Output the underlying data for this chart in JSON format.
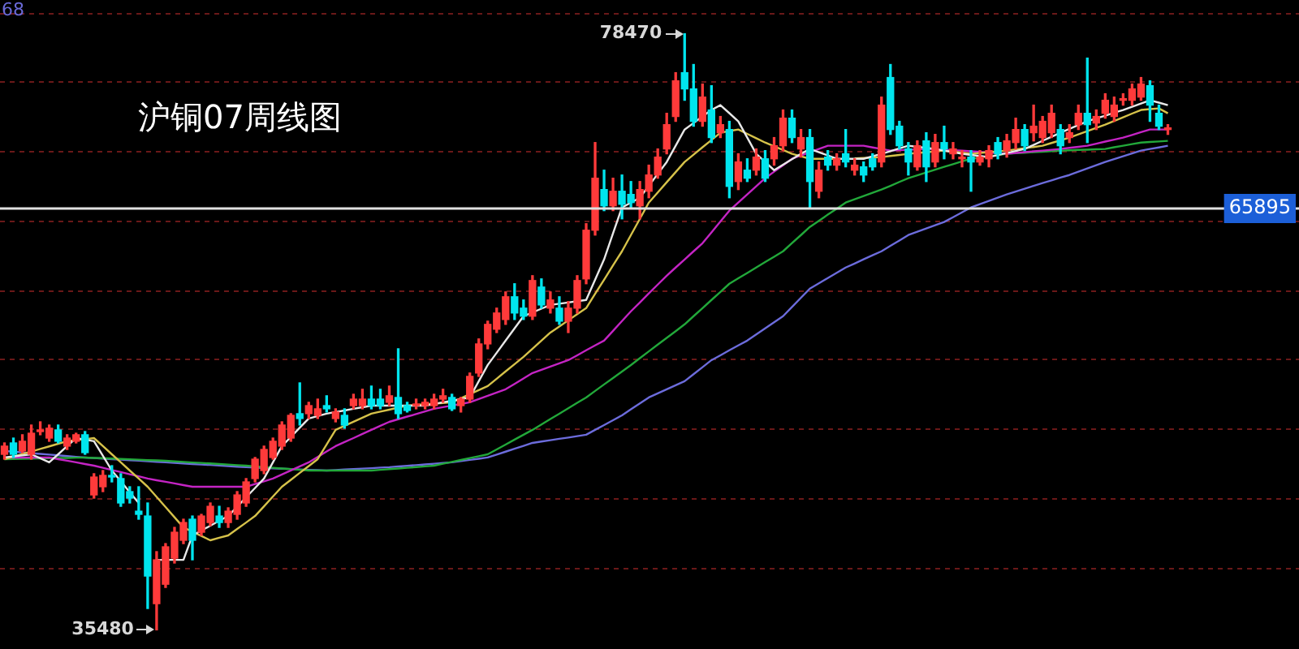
{
  "chart_data": {
    "type": "candlestick",
    "title": "沪铜07周线图",
    "categories": [
      null,
      null,
      null,
      null,
      null,
      null,
      null,
      null,
      null,
      null,
      null,
      null,
      null,
      null,
      null,
      null,
      null,
      null,
      null,
      null,
      null,
      null,
      null,
      null,
      null,
      null,
      null,
      null,
      null,
      null,
      null,
      null,
      null,
      null,
      null,
      null,
      null,
      null,
      null,
      null,
      null,
      null,
      null,
      null,
      null,
      null,
      null,
      null,
      null,
      null,
      null,
      null,
      null,
      null,
      null,
      null,
      null,
      null,
      null,
      null,
      null,
      null,
      null,
      null,
      null,
      null,
      null,
      null,
      null,
      null,
      null,
      null,
      null,
      null,
      null,
      null,
      null,
      null,
      null,
      null,
      null,
      null,
      null,
      null,
      null,
      null,
      null,
      null,
      null,
      null,
      null,
      null,
      null,
      null,
      null,
      null,
      null,
      null,
      null,
      null,
      null,
      null,
      null,
      null,
      null,
      null,
      null,
      null,
      null,
      null,
      null,
      null,
      null,
      null,
      null,
      null,
      null,
      null,
      null,
      null,
      null,
      null,
      null,
      null,
      null,
      null,
      null,
      null,
      null,
      null,
      null
    ],
    "ohlc": [
      [
        48140,
        48960,
        47790,
        48730
      ],
      [
        48960,
        49310,
        47910,
        48140
      ],
      [
        48380,
        49550,
        48260,
        49080
      ],
      [
        48140,
        50250,
        47790,
        49660
      ],
      [
        49780,
        50480,
        49550,
        49900
      ],
      [
        49310,
        50250,
        49080,
        50020
      ],
      [
        49900,
        50250,
        48960,
        49080
      ],
      [
        48730,
        49550,
        48490,
        49310
      ],
      [
        49080,
        49660,
        48960,
        49550
      ],
      [
        49550,
        49780,
        48140,
        48260
      ],
      [
        45210,
        46740,
        44980,
        46500
      ],
      [
        45800,
        46970,
        45450,
        46620
      ],
      [
        46620,
        47320,
        46150,
        46500
      ],
      [
        46390,
        46740,
        44390,
        44630
      ],
      [
        45450,
        45800,
        44630,
        44980
      ],
      [
        44040,
        45800,
        43460,
        43810
      ],
      [
        43690,
        44630,
        37020,
        39360
      ],
      [
        37370,
        41120,
        35480,
        40530
      ],
      [
        38770,
        41700,
        38540,
        41470
      ],
      [
        40650,
        42870,
        40300,
        42520
      ],
      [
        41940,
        43460,
        41700,
        43220
      ],
      [
        43460,
        43690,
        40530,
        41940
      ],
      [
        42520,
        43810,
        42290,
        43690
      ],
      [
        43220,
        44630,
        42990,
        44390
      ],
      [
        43690,
        44390,
        42870,
        43220
      ],
      [
        43220,
        44280,
        42870,
        44040
      ],
      [
        43810,
        45450,
        43460,
        45210
      ],
      [
        44630,
        46390,
        44390,
        46150
      ],
      [
        46390,
        47910,
        46150,
        47790
      ],
      [
        46970,
        48730,
        46740,
        48490
      ],
      [
        47910,
        49310,
        47790,
        49080
      ],
      [
        48730,
        50480,
        48490,
        50250
      ],
      [
        49310,
        51070,
        49080,
        50950
      ],
      [
        51070,
        53290,
        50250,
        50720
      ],
      [
        51070,
        51890,
        50720,
        51650
      ],
      [
        50950,
        52120,
        50720,
        51420
      ],
      [
        51650,
        52360,
        51190,
        51420
      ],
      [
        50720,
        51420,
        50480,
        51190
      ],
      [
        50950,
        51420,
        50020,
        50250
      ],
      [
        51650,
        52470,
        51420,
        52120
      ],
      [
        51650,
        52830,
        51420,
        52120
      ],
      [
        52120,
        53060,
        51420,
        51650
      ],
      [
        52120,
        52830,
        51420,
        51650
      ],
      [
        51890,
        53060,
        51650,
        52360
      ],
      [
        52240,
        55750,
        50720,
        51070
      ],
      [
        51650,
        51890,
        51190,
        51300
      ],
      [
        51650,
        52120,
        51420,
        51650
      ],
      [
        51650,
        52120,
        51420,
        51890
      ],
      [
        51650,
        52470,
        51420,
        52120
      ],
      [
        52120,
        52830,
        51890,
        52360
      ],
      [
        52240,
        52470,
        51300,
        51420
      ],
      [
        51650,
        52240,
        51190,
        52120
      ],
      [
        52120,
        54000,
        51890,
        53760
      ],
      [
        54000,
        56460,
        53760,
        56100
      ],
      [
        56100,
        57740,
        55750,
        57510
      ],
      [
        57160,
        58680,
        56920,
        58330
      ],
      [
        57860,
        59850,
        57510,
        59500
      ],
      [
        59500,
        60440,
        57860,
        58330
      ],
      [
        58680,
        59270,
        57860,
        58100
      ],
      [
        58100,
        61020,
        57860,
        60670
      ],
      [
        60200,
        60790,
        58680,
        58910
      ],
      [
        58680,
        59850,
        58330,
        59270
      ],
      [
        58680,
        59500,
        57510,
        57740
      ],
      [
        57740,
        59150,
        56920,
        58680
      ],
      [
        58680,
        61020,
        58330,
        60670
      ],
      [
        60790,
        64770,
        60440,
        64300
      ],
      [
        64300,
        70620,
        63950,
        68050
      ],
      [
        67230,
        68630,
        65710,
        66060
      ],
      [
        66060,
        68050,
        65710,
        67110
      ],
      [
        67110,
        68280,
        65120,
        66170
      ],
      [
        66880,
        67810,
        65940,
        66290
      ],
      [
        66060,
        67810,
        65120,
        67230
      ],
      [
        67110,
        68990,
        66640,
        68280
      ],
      [
        68280,
        70160,
        68050,
        69570
      ],
      [
        70160,
        72730,
        69810,
        71910
      ],
      [
        72500,
        75660,
        72150,
        75070
      ],
      [
        75660,
        78470,
        73670,
        74490
      ],
      [
        74490,
        76250,
        71800,
        72150
      ],
      [
        72150,
        74840,
        71800,
        73900
      ],
      [
        72970,
        74720,
        70620,
        70980
      ],
      [
        71330,
        72500,
        70980,
        71910
      ],
      [
        71560,
        72150,
        66640,
        67460
      ],
      [
        67810,
        69810,
        67230,
        69220
      ],
      [
        68630,
        69450,
        67810,
        68050
      ],
      [
        68630,
        70160,
        68280,
        69570
      ],
      [
        69450,
        70040,
        67810,
        68050
      ],
      [
        69450,
        70980,
        68990,
        70390
      ],
      [
        70390,
        72970,
        70040,
        72380
      ],
      [
        72380,
        72970,
        70620,
        70980
      ],
      [
        70160,
        71560,
        69570,
        70980
      ],
      [
        70980,
        71560,
        65940,
        67810
      ],
      [
        67110,
        69220,
        66640,
        68630
      ],
      [
        69570,
        70040,
        68630,
        68990
      ],
      [
        68990,
        69810,
        68630,
        69450
      ],
      [
        69810,
        71560,
        68870,
        69220
      ],
      [
        68630,
        69450,
        68280,
        68990
      ],
      [
        68870,
        69220,
        67810,
        68280
      ],
      [
        69450,
        69810,
        68630,
        68870
      ],
      [
        69220,
        73900,
        68870,
        73320
      ],
      [
        75310,
        76250,
        71210,
        71560
      ],
      [
        71800,
        72150,
        70160,
        70390
      ],
      [
        70160,
        70620,
        68280,
        69220
      ],
      [
        68870,
        70740,
        68630,
        70390
      ],
      [
        70740,
        71330,
        67810,
        68870
      ],
      [
        69220,
        71210,
        68870,
        70620
      ],
      [
        70620,
        71800,
        69450,
        70160
      ],
      [
        69810,
        70620,
        69450,
        70160
      ],
      [
        69450,
        70040,
        68870,
        69450
      ],
      [
        69570,
        70040,
        67110,
        69220
      ],
      [
        69220,
        70040,
        68990,
        69570
      ],
      [
        69450,
        70390,
        68870,
        70040
      ],
      [
        70620,
        70980,
        69450,
        69810
      ],
      [
        70040,
        71210,
        69570,
        70740
      ],
      [
        70620,
        72380,
        70160,
        71560
      ],
      [
        71560,
        71910,
        70040,
        70390
      ],
      [
        71330,
        73320,
        70740,
        71800
      ],
      [
        70980,
        72500,
        70620,
        72150
      ],
      [
        71330,
        73320,
        70980,
        72730
      ],
      [
        71560,
        71910,
        69810,
        70390
      ],
      [
        70980,
        71910,
        70620,
        71330
      ],
      [
        71910,
        73320,
        71560,
        72730
      ],
      [
        72730,
        76710,
        70620,
        71910
      ],
      [
        72030,
        72970,
        71560,
        72500
      ],
      [
        72730,
        74140,
        72380,
        73670
      ],
      [
        72500,
        73900,
        72150,
        73320
      ],
      [
        73670,
        74140,
        73320,
        73670
      ],
      [
        73670,
        74840,
        73320,
        74490
      ],
      [
        73900,
        75310,
        73670,
        74840
      ],
      [
        74720,
        75070,
        72150,
        73320
      ],
      [
        72730,
        73320,
        71560,
        71800
      ],
      [
        71560,
        71910,
        71210,
        71560
      ]
    ],
    "colors": [
      "#ff3a3a",
      "#00e5ee",
      "#ff3a3a",
      "#ff3a3a",
      "#ff3a3a",
      "#ff3a3a",
      "#00e5ee",
      "#ff3a3a",
      "#ff3a3a",
      "#00e5ee",
      "#ff3a3a",
      "#ff3a3a",
      "#00e5ee",
      "#00e5ee",
      "#00e5ee",
      "#00e5ee",
      "#00e5ee",
      "#ff3a3a",
      "#ff3a3a",
      "#ff3a3a",
      "#ff3a3a",
      "#00e5ee",
      "#ff3a3a",
      "#ff3a3a",
      "#00e5ee",
      "#ff3a3a",
      "#ff3a3a",
      "#ff3a3a",
      "#ff3a3a",
      "#ff3a3a",
      "#ff3a3a",
      "#ff3a3a",
      "#ff3a3a",
      "#00e5ee",
      "#ff3a3a",
      "#ff3a3a",
      "#00e5ee",
      "#ff3a3a",
      "#00e5ee",
      "#ff3a3a",
      "#ff3a3a",
      "#00e5ee",
      "#00e5ee",
      "#ff3a3a",
      "#00e5ee",
      "#00e5ee",
      "#ff3a3a",
      "#ff3a3a",
      "#ff3a3a",
      "#ff3a3a",
      "#00e5ee",
      "#ff3a3a",
      "#ff3a3a",
      "#ff3a3a",
      "#ff3a3a",
      "#ff3a3a",
      "#ff3a3a",
      "#00e5ee",
      "#00e5ee",
      "#ff3a3a",
      "#00e5ee",
      "#ff3a3a",
      "#00e5ee",
      "#ff3a3a",
      "#ff3a3a",
      "#ff3a3a",
      "#ff3a3a",
      "#00e5ee",
      "#ff3a3a",
      "#00e5ee",
      "#00e5ee",
      "#ff3a3a",
      "#ff3a3a",
      "#ff3a3a",
      "#ff3a3a",
      "#ff3a3a",
      "#00e5ee",
      "#00e5ee",
      "#ff3a3a",
      "#00e5ee",
      "#ff3a3a",
      "#00e5ee",
      "#ff3a3a",
      "#00e5ee",
      "#ff3a3a",
      "#00e5ee",
      "#ff3a3a",
      "#ff3a3a",
      "#00e5ee",
      "#ff3a3a",
      "#00e5ee",
      "#ff3a3a",
      "#00e5ee",
      "#ff3a3a",
      "#00e5ee",
      "#ff3a3a",
      "#00e5ee",
      "#00e5ee",
      "#ff3a3a",
      "#00e5ee",
      "#00e5ee",
      "#00e5ee",
      "#ff3a3a",
      "#00e5ee",
      "#ff3a3a",
      "#00e5ee",
      "#ff3a3a",
      "#ff3a3a",
      "#00e5ee",
      "#ff3a3a",
      "#ff3a3a",
      "#00e5ee",
      "#ff3a3a",
      "#ff3a3a",
      "#00e5ee",
      "#ff3a3a",
      "#ff3a3a",
      "#ff3a3a",
      "#00e5ee",
      "#ff3a3a",
      "#ff3a3a",
      "#00e5ee",
      "#ff3a3a",
      "#ff3a3a",
      "#ff3a3a",
      "#ff3a3a",
      "#ff3a3a",
      "#ff3a3a",
      "#00e5ee",
      "#00e5ee",
      "#ff3a3a"
    ],
    "series": [
      {
        "type": "line",
        "color": "#e8e8e8",
        "values": [
          47910,
          47990,
          48060,
          48140,
          47850,
          47560,
          48140,
          48730,
          49310,
          49200,
          49080,
          48030,
          46970,
          46190,
          45410,
          44630,
          null,
          40530,
          40530,
          40530,
          40530,
          42290,
          42640,
          42990,
          43340,
          43690,
          44360,
          45040,
          45710,
          46390,
          47560,
          48730,
          49390,
          50060,
          50720,
          50900,
          51070,
          51190,
          51300,
          51420,
          51530,
          51650,
          51650,
          51650,
          51650,
          51650,
          51650,
          51650,
          51770,
          51890,
          52000,
          52120,
          52240,
          53410,
          54580,
          55460,
          56340,
          57220,
          58100,
          58370,
          58640,
          58910,
          59000,
          59090,
          59180,
          59270,
          60730,
          62190,
          64070,
          65940,
          66290,
          66640,
          67500,
          68360,
          69220,
          70390,
          71560,
          72030,
          72500,
          72970,
          73320,
          72740,
          72150,
          70980,
          69810,
          69220,
          68630,
          69020,
          69420,
          69810,
          70160,
          69920,
          69690,
          69450,
          69450,
          69450,
          69450,
          69630,
          69810,
          70000,
          70200,
          70390,
          70310,
          70240,
          70160,
          70040,
          69930,
          69810,
          69730,
          69650,
          69570,
          69720,
          69870,
          70010,
          70160,
          70450,
          70750,
          71040,
          71330,
          71600,
          71880,
          72150,
          72360,
          72560,
          72770,
          72970,
          73200,
          73440,
          73670,
          73500,
          73320
        ]
      },
      {
        "type": "line",
        "color": "#d6c24a",
        "values": [
          47790,
          47970,
          48160,
          48340,
          48530,
          48710,
          48900,
          49080,
          49160,
          49230,
          49310,
          48730,
          48140,
          47560,
          46970,
          46390,
          45800,
          45070,
          44340,
          43600,
          42870,
          42560,
          42250,
          41940,
          42120,
          42290,
          42760,
          43220,
          43690,
          44390,
          45100,
          45800,
          46300,
          46800,
          47290,
          47790,
          48850,
          49900,
          50190,
          50490,
          50780,
          51070,
          51220,
          51360,
          51510,
          51650,
          51700,
          51750,
          51790,
          51840,
          51890,
          52180,
          52480,
          52770,
          53060,
          53590,
          54120,
          54640,
          55170,
          55750,
          56340,
          56920,
          57360,
          57800,
          58240,
          58680,
          59710,
          60730,
          61760,
          62780,
          63950,
          65120,
          66290,
          67020,
          67760,
          68490,
          69220,
          69750,
          70280,
          70800,
          71330,
          71450,
          71560,
          71250,
          70930,
          70620,
          70350,
          70080,
          69810,
          69630,
          69450,
          69450,
          69450,
          69450,
          null,
          69480,
          69510,
          69540,
          69570,
          69650,
          69730,
          69810,
          69870,
          69920,
          69980,
          70040,
          69960,
          69890,
          69810,
          69870,
          69930,
          69980,
          70040,
          70130,
          70220,
          70300,
          70390,
          70590,
          70780,
          70980,
          71210,
          71450,
          71680,
          71910,
          72180,
          72440,
          72710,
          72970,
          73030,
          73080,
          72730
        ]
      },
      {
        "type": "line",
        "color": "#c424c4",
        "values": [
          47910,
          47910,
          47910,
          47910,
          47910,
          47910,
          47790,
          47680,
          47560,
          47440,
          47320,
          47170,
          47010,
          46860,
          46700,
          46550,
          46390,
          46270,
          46160,
          46040,
          45920,
          45800,
          45800,
          45800,
          45800,
          45800,
          45800,
          45800,
          46000,
          46190,
          46390,
          46680,
          46980,
          47270,
          47560,
          47950,
          48340,
          48730,
          49020,
          49310,
          49610,
          49900,
          50190,
          50480,
          50670,
          50860,
          51040,
          51230,
          51420,
          51540,
          51660,
          51770,
          51890,
          52130,
          52360,
          52600,
          52830,
          53220,
          53610,
          54000,
          54230,
          54470,
          54700,
          54930,
          55280,
          55640,
          55990,
          56340,
          57040,
          57750,
          58450,
          59090,
          59740,
          60380,
          61020,
          61610,
          62190,
          62780,
          63360,
          64140,
          64930,
          65710,
          66300,
          66880,
          67470,
          68050,
          68520,
          68980,
          69450,
          69690,
          69920,
          70160,
          70390,
          70390,
          70390,
          70390,
          70390,
          70270,
          70160,
          70040,
          70070,
          70100,
          70130,
          70160,
          70130,
          70100,
          70070,
          70040,
          69990,
          69950,
          69900,
          69860,
          69810,
          69870,
          69930,
          69990,
          70040,
          70100,
          70160,
          70240,
          70310,
          70390,
          70540,
          70690,
          70830,
          70980,
          71170,
          71370,
          71560,
          71560,
          71560
        ]
      },
      {
        "type": "line",
        "color": "#22a83a",
        "values": [
          47790,
          47800,
          47820,
          47830,
          47840,
          47860,
          47870,
          47880,
          47900,
          47910,
          47880,
          47860,
          47830,
          47800,
          47780,
          47750,
          47720,
          47700,
          47670,
          47630,
          47590,
          47550,
          47520,
          47480,
          47440,
          47400,
          47360,
          47320,
          47270,
          47220,
          47170,
          47120,
          47070,
          47020,
          46970,
          46970,
          46970,
          46970,
          46970,
          46970,
          46970,
          46970,
          47020,
          47070,
          47120,
          47170,
          47220,
          47270,
          47320,
          47460,
          47590,
          47730,
          47870,
          48000,
          48140,
          48490,
          48840,
          49200,
          49550,
          49900,
          50290,
          50680,
          51070,
          51460,
          51850,
          52240,
          52710,
          53180,
          53640,
          54110,
          54580,
          55070,
          55560,
          56050,
          56530,
          57020,
          57510,
          58100,
          58680,
          59270,
          59850,
          60440,
          60830,
          61220,
          61610,
          62000,
          62390,
          62780,
          63370,
          63950,
          64540,
          64980,
          65420,
          65850,
          66290,
          66530,
          66760,
          67000,
          67230,
          67500,
          67780,
          68050,
          68260,
          68460,
          68670,
          68870,
          69060,
          69260,
          69450,
          69540,
          69630,
          69720,
          69810,
          69850,
          69890,
          69930,
          69960,
          70000,
          70040,
          70060,
          70090,
          70110,
          70140,
          70160,
          70280,
          70390,
          70510,
          70620,
          70660,
          70700,
          70740
        ]
      },
      {
        "type": "line",
        "color": "#6c6cdc",
        "values": [
          48380,
          48330,
          48280,
          48220,
          48170,
          48120,
          48070,
          48010,
          47960,
          47910,
          47870,
          47830,
          47790,
          47750,
          47720,
          47680,
          47640,
          47600,
          47560,
          47520,
          47480,
          47440,
          47400,
          47370,
          47330,
          47290,
          47250,
          47210,
          47180,
          47160,
          47130,
          47100,
          47080,
          47050,
          47020,
          47000,
          46970,
          47000,
          47040,
          47070,
          47110,
          47140,
          47180,
          47210,
          47260,
          47310,
          47360,
          47410,
          47460,
          47510,
          47560,
          47650,
          47740,
          47820,
          47910,
          48120,
          48330,
          48540,
          48750,
          48960,
          49060,
          49160,
          49260,
          49350,
          49450,
          49550,
          49900,
          50250,
          50600,
          50950,
          51380,
          51810,
          52240,
          52530,
          52830,
          53120,
          53410,
          53920,
          54420,
          54930,
          55280,
          55640,
          55990,
          56340,
          56780,
          57220,
          57660,
          58100,
          58760,
          59430,
          60090,
          60470,
          60850,
          61230,
          61610,
          61900,
          62200,
          62490,
          62780,
          63170,
          63560,
          63950,
          64190,
          64420,
          64660,
          64890,
          65240,
          65590,
          65940,
          66180,
          66410,
          66650,
          66880,
          67090,
          67290,
          67500,
          67700,
          67890,
          68090,
          68280,
          68520,
          68750,
          68990,
          69220,
          69430,
          69630,
          69840,
          70040,
          70160,
          70270,
          70390
        ]
      }
    ],
    "ylim": [
      34100,
      80900
    ],
    "yticks": [
      {
        "value": 40000,
        "label": null
      },
      {
        "value": 45000,
        "label": null
      },
      {
        "value": 50000,
        "label": null
      },
      {
        "value": 55000,
        "label": null
      },
      {
        "value": 60000,
        "label": null
      },
      {
        "value": 65000,
        "label": null
      },
      {
        "value": 70000,
        "label": null
      },
      {
        "value": 75000,
        "label": null
      },
      {
        "value": 80000,
        "label": null
      }
    ],
    "grid": "y",
    "tick_labels": false,
    "legend": false,
    "marker": "none",
    "line_style": "solid",
    "ref_lines": [
      {
        "axis": "y",
        "value": 65895,
        "label": "65895",
        "color": "#e0e0e0"
      }
    ],
    "annotations": [
      "68",
      "78470",
      "35480"
    ]
  }
}
